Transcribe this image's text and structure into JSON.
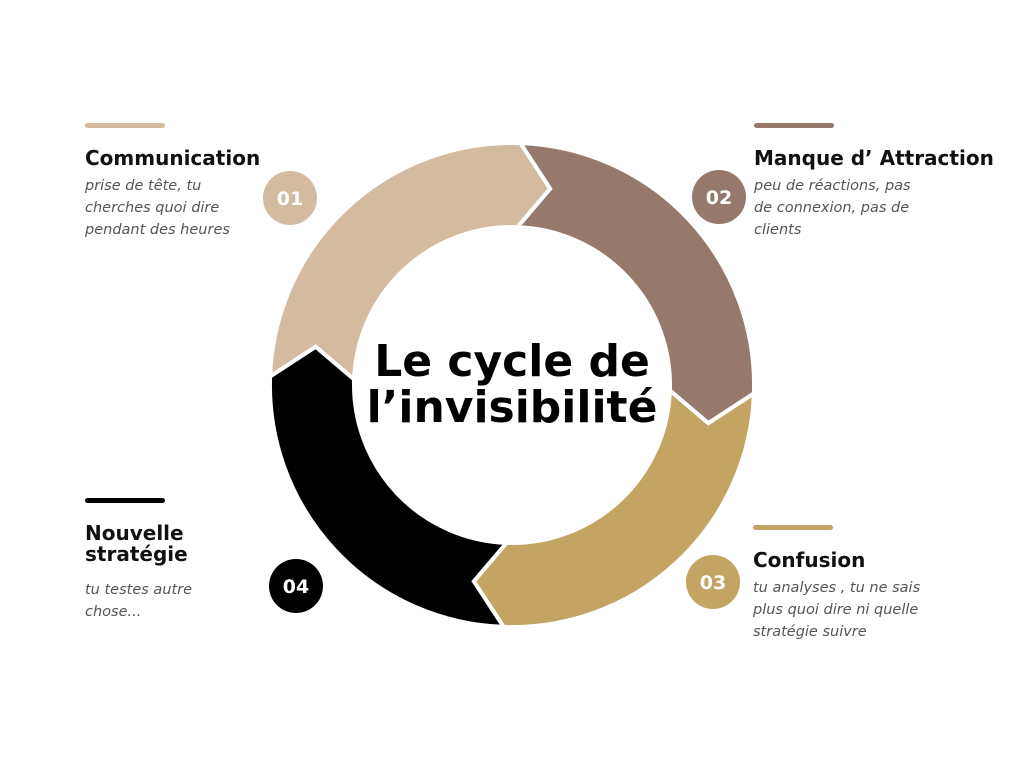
{
  "title_lines": [
    "Le cycle de",
    "l’invisibilité"
  ],
  "steps": [
    {
      "number": "01",
      "heading_lines": [
        "Communication"
      ],
      "text_lines": [
        "prise de tête, tu",
        "cherches quoi dire",
        "pendant des heures"
      ]
    },
    {
      "number": "02",
      "heading_lines": [
        "Manque d’ Attraction"
      ],
      "text_lines": [
        "peu de réactions, pas",
        "de connexion, pas de",
        "clients"
      ]
    },
    {
      "number": "03",
      "heading_lines": [
        "Confusion"
      ],
      "text_lines": [
        "tu analyses , tu ne sais",
        "plus quoi dire ni quelle",
        "stratégie suivre"
      ]
    },
    {
      "number": "04",
      "heading_lines": [
        "Nouvelle",
        "stratégie"
      ],
      "text_lines": [
        "tu testes autre",
        "chose..."
      ]
    }
  ]
}
